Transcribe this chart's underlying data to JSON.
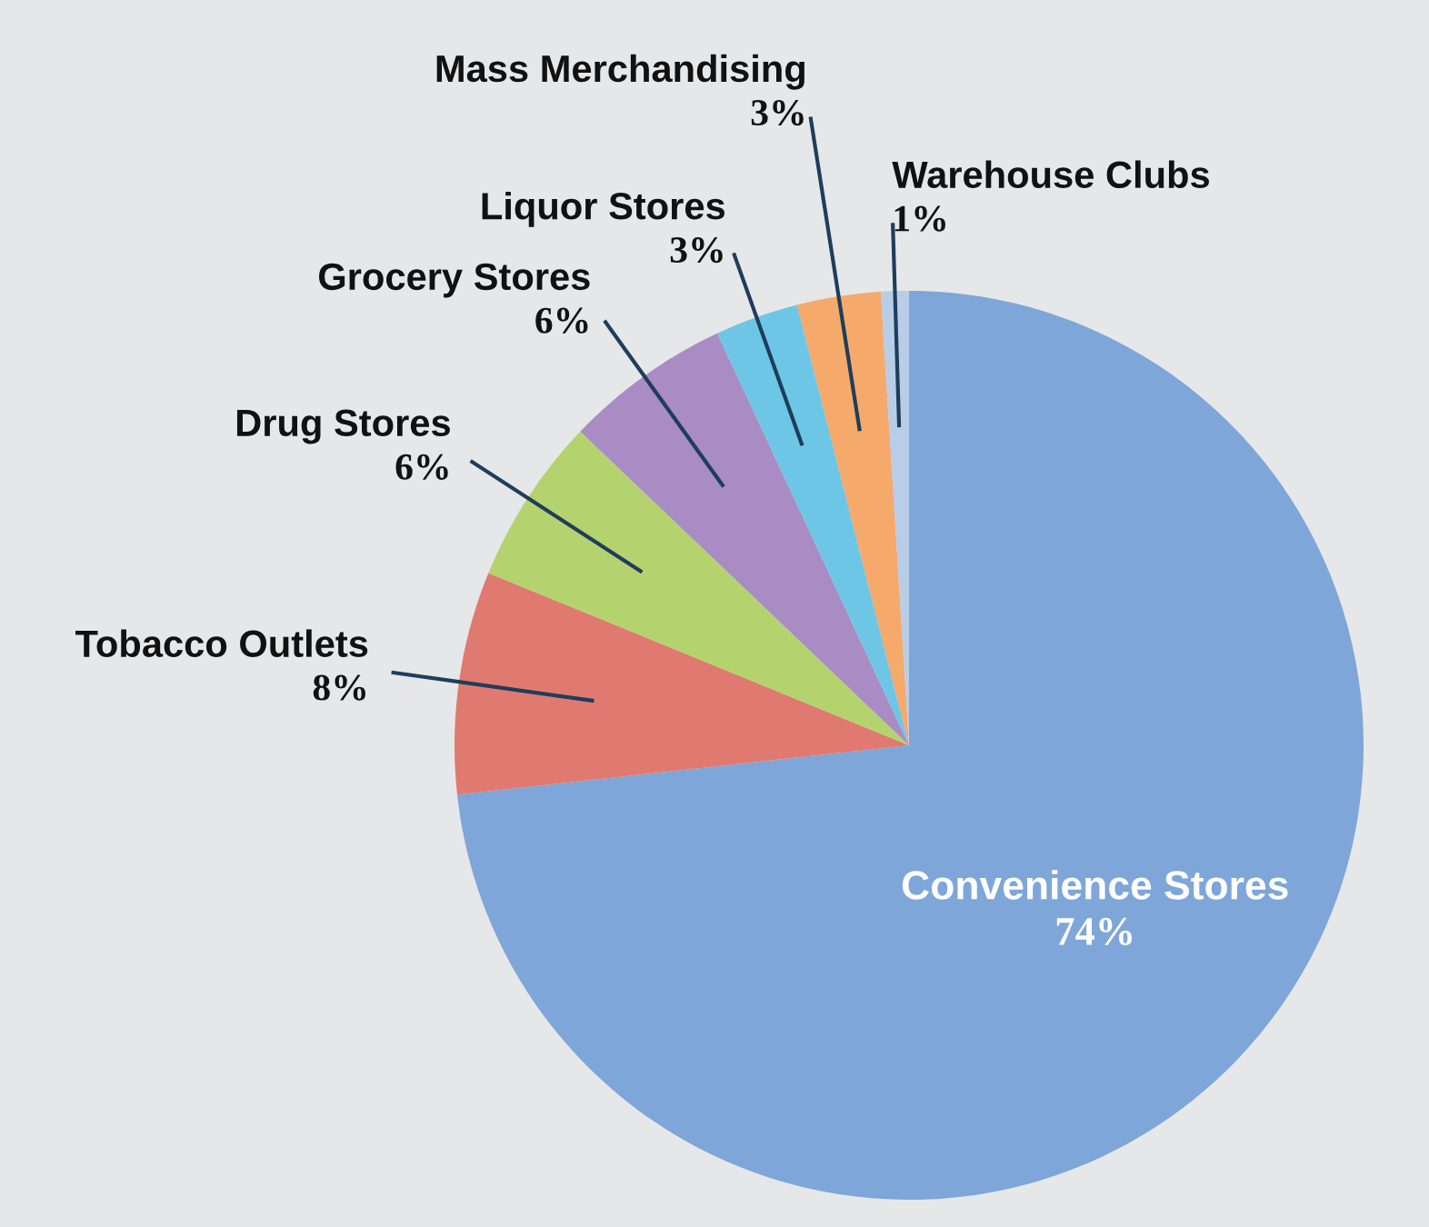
{
  "chart_data": {
    "type": "pie",
    "categories": [
      "Convenience Stores",
      "Tobacco Outlets",
      "Drug Stores",
      "Grocery Stores",
      "Liquor Stores",
      "Mass Merchandising",
      "Warehouse Clubs"
    ],
    "values": [
      74,
      8,
      6,
      6,
      3,
      3,
      1
    ],
    "value_labels": [
      "74%",
      "8%",
      "6%",
      "6%",
      "3%",
      "3%",
      "1%"
    ],
    "colors": [
      "#7ea6d9",
      "#e07a70",
      "#b4d36e",
      "#a98cc4",
      "#6ec6e6",
      "#f5a96a",
      "#b8cde8"
    ]
  }
}
